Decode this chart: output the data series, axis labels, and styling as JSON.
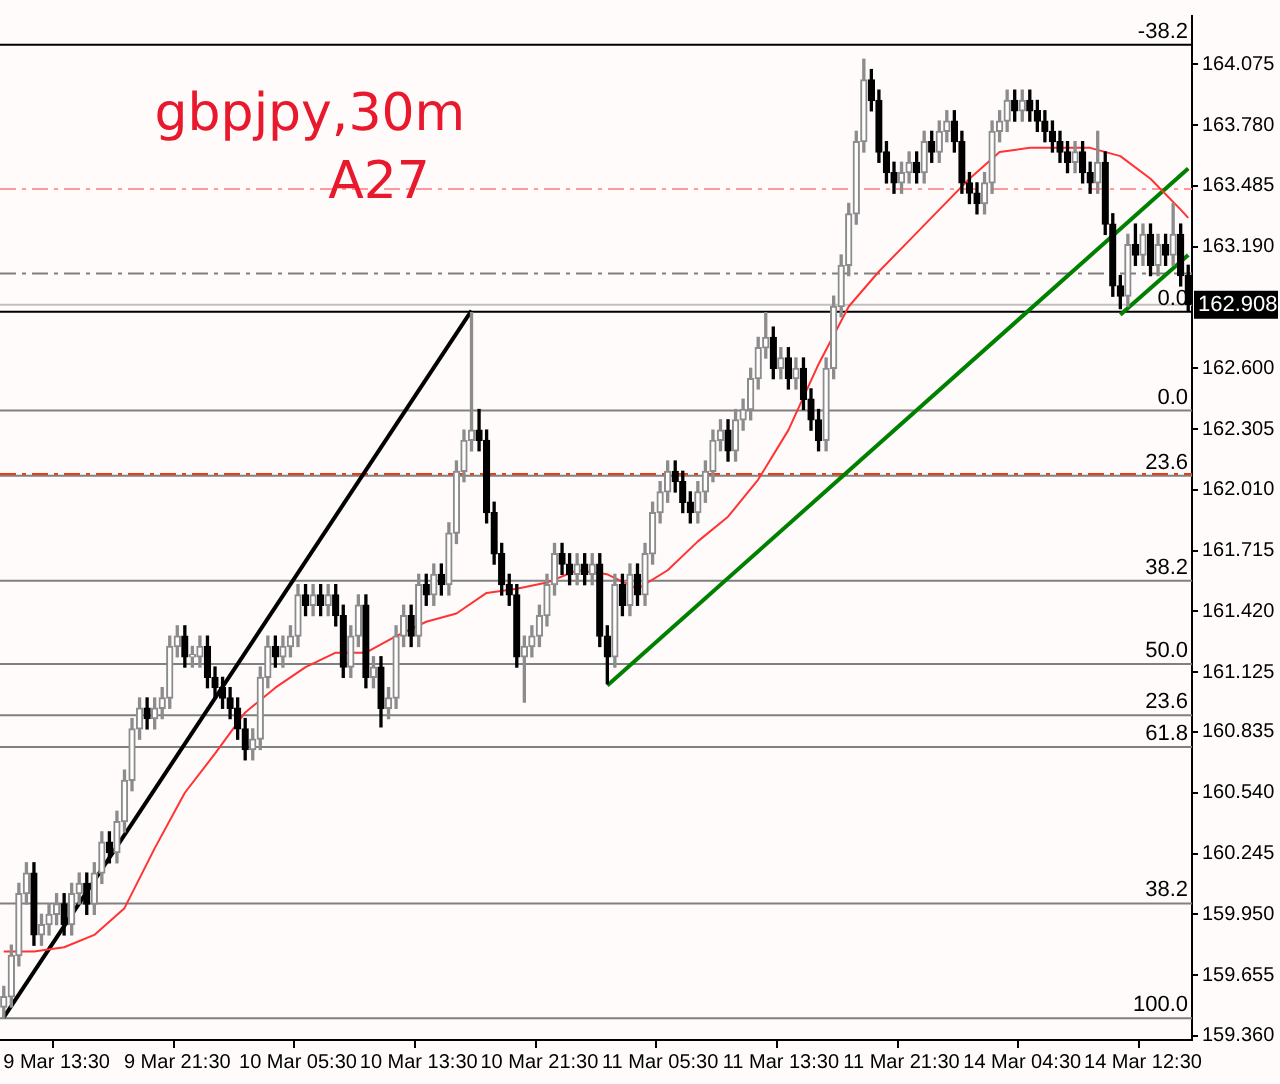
{
  "chart_data": {
    "type": "candlestick",
    "title": "gbpjpy,30m",
    "subtitle": "A27",
    "categories": [
      null,
      null,
      null,
      null,
      null,
      null,
      null,
      "9 Mar 13:30",
      null,
      null,
      null,
      null,
      null,
      null,
      null,
      null,
      null,
      null,
      null,
      null,
      null,
      null,
      null,
      "9 Mar 21:30",
      null,
      null,
      null,
      null,
      null,
      null,
      null,
      null,
      null,
      null,
      null,
      null,
      null,
      null,
      null,
      "10 Mar 05:30",
      null,
      null,
      null,
      null,
      null,
      null,
      null,
      null,
      null,
      null,
      null,
      null,
      null,
      null,
      null,
      "10 Mar 13:30",
      null,
      null,
      null,
      null,
      null,
      null,
      null,
      null,
      null,
      null,
      null,
      null,
      null,
      null,
      null,
      "10 Mar 21:30",
      null,
      null,
      null,
      null,
      null,
      null,
      null,
      null,
      null,
      null,
      null,
      null,
      null,
      null,
      null,
      "11 Mar 05:30",
      null,
      null,
      null,
      null,
      null,
      null,
      null,
      null,
      null,
      null,
      null,
      null,
      null,
      null,
      null,
      "11 Mar 13:30",
      null,
      null,
      null,
      null,
      null,
      null,
      null,
      null,
      null,
      null,
      null,
      null,
      null,
      null,
      null,
      "11 Mar 21:30",
      null,
      null,
      null,
      null,
      null,
      null,
      null,
      null,
      null,
      null,
      null,
      null,
      null,
      null,
      null,
      "14 Mar 04:30",
      null,
      null,
      null,
      null,
      null,
      null,
      null,
      null,
      null,
      null,
      null,
      null,
      null,
      null,
      null,
      "14 Mar 12:30",
      null,
      null,
      null,
      null,
      null,
      null
    ],
    "ohlc": [
      [
        159.5,
        159.6,
        159.45,
        159.55
      ],
      [
        159.55,
        159.8,
        159.5,
        159.75
      ],
      [
        159.75,
        160.1,
        159.7,
        160.05
      ],
      [
        160.05,
        160.2,
        160.0,
        160.15
      ],
      [
        160.15,
        160.2,
        159.8,
        159.85
      ],
      [
        159.85,
        159.95,
        159.8,
        159.9
      ],
      [
        159.9,
        160.0,
        159.85,
        159.95
      ],
      [
        159.95,
        160.05,
        159.9,
        160.0
      ],
      [
        160.0,
        160.05,
        159.85,
        159.9
      ],
      [
        159.9,
        160.1,
        159.85,
        160.05
      ],
      [
        160.05,
        160.15,
        160.0,
        160.1
      ],
      [
        160.1,
        160.15,
        159.95,
        160.0
      ],
      [
        160.0,
        160.2,
        159.95,
        160.15
      ],
      [
        160.15,
        160.35,
        160.1,
        160.3
      ],
      [
        160.3,
        160.35,
        160.2,
        160.25
      ],
      [
        160.25,
        160.45,
        160.2,
        160.4
      ],
      [
        160.4,
        160.65,
        160.35,
        160.6
      ],
      [
        160.6,
        160.9,
        160.55,
        160.85
      ],
      [
        160.85,
        161.0,
        160.8,
        160.95
      ],
      [
        160.95,
        161.0,
        160.85,
        160.9
      ],
      [
        160.9,
        161.0,
        160.85,
        160.95
      ],
      [
        160.95,
        161.05,
        160.9,
        161.0
      ],
      [
        161.0,
        161.3,
        160.95,
        161.25
      ],
      [
        161.25,
        161.35,
        161.2,
        161.3
      ],
      [
        161.3,
        161.35,
        161.15,
        161.2
      ],
      [
        161.2,
        161.25,
        161.15,
        161.2
      ],
      [
        161.2,
        161.3,
        161.15,
        161.25
      ],
      [
        161.25,
        161.3,
        161.05,
        161.1
      ],
      [
        161.1,
        161.15,
        161.0,
        161.05
      ],
      [
        161.05,
        161.1,
        160.95,
        161.0
      ],
      [
        161.0,
        161.05,
        160.9,
        160.95
      ],
      [
        160.95,
        161.0,
        160.8,
        160.85
      ],
      [
        160.85,
        160.9,
        160.7,
        160.75
      ],
      [
        160.75,
        160.85,
        160.7,
        160.8
      ],
      [
        160.8,
        161.15,
        160.75,
        161.1
      ],
      [
        161.1,
        161.3,
        161.05,
        161.25
      ],
      [
        161.25,
        161.3,
        161.15,
        161.2
      ],
      [
        161.2,
        161.3,
        161.15,
        161.25
      ],
      [
        161.25,
        161.35,
        161.2,
        161.3
      ],
      [
        161.3,
        161.55,
        161.25,
        161.5
      ],
      [
        161.5,
        161.55,
        161.4,
        161.45
      ],
      [
        161.45,
        161.55,
        161.4,
        161.5
      ],
      [
        161.5,
        161.55,
        161.4,
        161.45
      ],
      [
        161.45,
        161.55,
        161.4,
        161.5
      ],
      [
        161.5,
        161.55,
        161.35,
        161.4
      ],
      [
        161.4,
        161.45,
        161.1,
        161.15
      ],
      [
        161.15,
        161.35,
        161.1,
        161.3
      ],
      [
        161.3,
        161.5,
        161.25,
        161.45
      ],
      [
        161.45,
        161.5,
        161.05,
        161.1
      ],
      [
        161.1,
        161.2,
        161.05,
        161.15
      ],
      [
        161.15,
        161.2,
        160.86,
        160.95
      ],
      [
        160.95,
        161.05,
        160.9,
        161.0
      ],
      [
        161.0,
        161.35,
        160.95,
        161.3
      ],
      [
        161.3,
        161.45,
        161.25,
        161.4
      ],
      [
        161.4,
        161.45,
        161.25,
        161.3
      ],
      [
        161.3,
        161.6,
        161.25,
        161.55
      ],
      [
        161.55,
        161.6,
        161.45,
        161.5
      ],
      [
        161.5,
        161.65,
        161.45,
        161.6
      ],
      [
        161.6,
        161.65,
        161.5,
        161.55
      ],
      [
        161.55,
        161.85,
        161.5,
        161.8
      ],
      [
        161.8,
        162.15,
        161.75,
        162.1
      ],
      [
        162.1,
        162.3,
        162.05,
        162.25
      ],
      [
        162.25,
        162.87,
        162.2,
        162.3
      ],
      [
        162.3,
        162.4,
        162.2,
        162.25
      ],
      [
        162.25,
        162.3,
        161.85,
        161.9
      ],
      [
        161.9,
        161.95,
        161.65,
        161.7
      ],
      [
        161.7,
        161.75,
        161.5,
        161.55
      ],
      [
        161.55,
        161.6,
        161.45,
        161.5
      ],
      [
        161.5,
        161.55,
        161.15,
        161.2
      ],
      [
        161.2,
        161.3,
        160.98,
        161.25
      ],
      [
        161.25,
        161.35,
        161.2,
        161.3
      ],
      [
        161.3,
        161.45,
        161.25,
        161.4
      ],
      [
        161.4,
        161.6,
        161.35,
        161.55
      ],
      [
        161.55,
        161.75,
        161.5,
        161.7
      ],
      [
        161.7,
        161.75,
        161.6,
        161.65
      ],
      [
        161.65,
        161.7,
        161.55,
        161.6
      ],
      [
        161.6,
        161.7,
        161.55,
        161.65
      ],
      [
        161.65,
        161.7,
        161.55,
        161.6
      ],
      [
        161.6,
        161.7,
        161.55,
        161.65
      ],
      [
        161.65,
        161.7,
        161.25,
        161.3
      ],
      [
        161.3,
        161.35,
        161.07,
        161.2
      ],
      [
        161.2,
        161.6,
        161.15,
        161.55
      ],
      [
        161.55,
        161.6,
        161.4,
        161.45
      ],
      [
        161.45,
        161.65,
        161.4,
        161.6
      ],
      [
        161.6,
        161.65,
        161.45,
        161.5
      ],
      [
        161.5,
        161.75,
        161.45,
        161.7
      ],
      [
        161.7,
        161.95,
        161.65,
        161.9
      ],
      [
        161.9,
        162.05,
        161.85,
        162.0
      ],
      [
        162.0,
        162.15,
        161.95,
        162.1
      ],
      [
        162.1,
        162.15,
        162.0,
        162.05
      ],
      [
        162.05,
        162.1,
        161.9,
        161.95
      ],
      [
        161.95,
        162.0,
        161.85,
        161.9
      ],
      [
        161.9,
        162.05,
        161.85,
        162.0
      ],
      [
        162.0,
        162.15,
        161.95,
        162.1
      ],
      [
        162.1,
        162.3,
        162.05,
        162.25
      ],
      [
        162.25,
        162.35,
        162.2,
        162.3
      ],
      [
        162.3,
        162.35,
        162.15,
        162.2
      ],
      [
        162.2,
        162.4,
        162.15,
        162.35
      ],
      [
        162.35,
        162.45,
        162.3,
        162.4
      ],
      [
        162.4,
        162.6,
        162.35,
        162.55
      ],
      [
        162.55,
        162.75,
        162.5,
        162.7
      ],
      [
        162.7,
        162.87,
        162.65,
        162.75
      ],
      [
        162.75,
        162.8,
        162.55,
        162.6
      ],
      [
        162.6,
        162.7,
        162.55,
        162.65
      ],
      [
        162.65,
        162.7,
        162.5,
        162.55
      ],
      [
        162.55,
        162.65,
        162.5,
        162.6
      ],
      [
        162.6,
        162.65,
        162.4,
        162.45
      ],
      [
        162.45,
        162.5,
        162.3,
        162.35
      ],
      [
        162.35,
        162.4,
        162.2,
        162.25
      ],
      [
        162.25,
        162.65,
        162.2,
        162.6
      ],
      [
        162.6,
        162.95,
        162.55,
        162.9
      ],
      [
        162.9,
        163.15,
        162.85,
        163.1
      ],
      [
        163.1,
        163.4,
        163.05,
        163.35
      ],
      [
        163.35,
        163.75,
        163.3,
        163.7
      ],
      [
        163.7,
        164.1,
        163.65,
        164.0
      ],
      [
        164.0,
        164.05,
        163.85,
        163.9
      ],
      [
        163.9,
        163.95,
        163.6,
        163.65
      ],
      [
        163.65,
        163.7,
        163.5,
        163.55
      ],
      [
        163.55,
        163.6,
        163.45,
        163.5
      ],
      [
        163.5,
        163.6,
        163.45,
        163.55
      ],
      [
        163.55,
        163.65,
        163.5,
        163.6
      ],
      [
        163.6,
        163.65,
        163.5,
        163.55
      ],
      [
        163.55,
        163.75,
        163.5,
        163.7
      ],
      [
        163.7,
        163.75,
        163.6,
        163.65
      ],
      [
        163.65,
        163.8,
        163.6,
        163.75
      ],
      [
        163.75,
        163.85,
        163.7,
        163.8
      ],
      [
        163.8,
        163.85,
        163.65,
        163.7
      ],
      [
        163.7,
        163.75,
        163.45,
        163.5
      ],
      [
        163.5,
        163.55,
        163.4,
        163.45
      ],
      [
        163.45,
        163.5,
        163.35,
        163.4
      ],
      [
        163.4,
        163.55,
        163.35,
        163.5
      ],
      [
        163.5,
        163.8,
        163.45,
        163.75
      ],
      [
        163.75,
        163.85,
        163.7,
        163.8
      ],
      [
        163.8,
        163.95,
        163.75,
        163.9
      ],
      [
        163.9,
        163.95,
        163.8,
        163.85
      ],
      [
        163.85,
        163.95,
        163.8,
        163.9
      ],
      [
        163.9,
        163.95,
        163.8,
        163.85
      ],
      [
        163.85,
        163.9,
        163.75,
        163.8
      ],
      [
        163.8,
        163.85,
        163.7,
        163.75
      ],
      [
        163.75,
        163.8,
        163.65,
        163.7
      ],
      [
        163.7,
        163.75,
        163.6,
        163.65
      ],
      [
        163.65,
        163.7,
        163.55,
        163.6
      ],
      [
        163.6,
        163.7,
        163.55,
        163.65
      ],
      [
        163.65,
        163.7,
        163.5,
        163.55
      ],
      [
        163.55,
        163.6,
        163.45,
        163.5
      ],
      [
        163.5,
        163.75,
        163.45,
        163.6
      ],
      [
        163.6,
        163.65,
        163.25,
        163.3
      ],
      [
        163.3,
        163.35,
        162.95,
        163.0
      ],
      [
        163.0,
        163.05,
        162.89,
        162.95
      ],
      [
        162.95,
        163.25,
        162.9,
        163.2
      ],
      [
        163.2,
        163.3,
        163.1,
        163.15
      ],
      [
        163.15,
        163.3,
        163.1,
        163.25
      ],
      [
        163.25,
        163.3,
        163.05,
        163.1
      ],
      [
        163.1,
        163.25,
        163.05,
        163.2
      ],
      [
        163.2,
        163.25,
        163.1,
        163.15
      ],
      [
        163.15,
        163.4,
        163.1,
        163.25
      ],
      [
        163.25,
        163.3,
        163.0,
        163.05
      ],
      [
        163.05,
        163.1,
        162.88,
        162.91
      ]
    ],
    "series": [
      {
        "type": "line",
        "color": "#ff3333",
        "values": [
          159.77,
          null,
          null,
          null,
          159.77,
          null,
          null,
          null,
          159.79,
          null,
          null,
          null,
          159.85,
          null,
          null,
          null,
          159.98,
          null,
          null,
          null,
          160.27,
          null,
          null,
          null,
          160.54,
          null,
          null,
          null,
          160.73,
          null,
          null,
          null,
          160.93,
          null,
          null,
          null,
          161.05,
          null,
          null,
          null,
          161.15,
          null,
          null,
          null,
          161.22,
          null,
          null,
          null,
          161.22,
          null,
          null,
          null,
          161.3,
          null,
          null,
          null,
          161.37,
          null,
          null,
          null,
          161.41,
          null,
          null,
          null,
          161.51,
          null,
          null,
          null,
          161.53,
          null,
          null,
          null,
          161.56,
          null,
          null,
          null,
          161.62,
          null,
          null,
          null,
          161.6,
          null,
          null,
          null,
          161.53,
          null,
          null,
          null,
          161.62,
          null,
          null,
          null,
          161.76,
          null,
          null,
          null,
          161.88,
          null,
          null,
          null,
          162.06,
          null,
          null,
          null,
          162.3,
          null,
          null,
          null,
          162.62,
          null,
          null,
          null,
          162.9,
          null,
          null,
          null,
          163.07,
          null,
          null,
          null,
          163.22,
          null,
          null,
          null,
          163.37,
          null,
          null,
          null,
          163.52,
          null,
          null,
          null,
          163.65,
          null,
          null,
          null,
          163.67,
          null,
          null,
          null,
          163.67,
          null,
          null,
          null,
          163.67,
          null,
          null,
          null,
          163.63,
          null,
          null,
          null,
          163.52,
          null,
          null,
          null,
          163.37,
          163.33
        ]
      },
      {
        "type": "line",
        "color": "#000000",
        "values": [
          159.45,
          null,
          null,
          null,
          null,
          null,
          null,
          null,
          null,
          null,
          null,
          null,
          null,
          null,
          null,
          null,
          null,
          null,
          null,
          null,
          null,
          null,
          null,
          null,
          null,
          null,
          null,
          null,
          null,
          null,
          null,
          null,
          null,
          null,
          null,
          null,
          null,
          null,
          null,
          null,
          null,
          null,
          null,
          null,
          null,
          null,
          null,
          null,
          null,
          null,
          null,
          null,
          null,
          null,
          null,
          null,
          null,
          null,
          null,
          null,
          null,
          null,
          162.88,
          null,
          null,
          null,
          null,
          null,
          null,
          null,
          null,
          null,
          null,
          null,
          null,
          null,
          null,
          null,
          null,
          null,
          null,
          null,
          null,
          null,
          null,
          null,
          null,
          null,
          null,
          null,
          null,
          null,
          null,
          null,
          null,
          null,
          null,
          null,
          null,
          null,
          null,
          null,
          null,
          null,
          null,
          null,
          null,
          null,
          null,
          null,
          null,
          null,
          null,
          null,
          null,
          null,
          null,
          null,
          null,
          null,
          null,
          null,
          null,
          null,
          null,
          null,
          null,
          null,
          null,
          null,
          null,
          null,
          null,
          null,
          null,
          null,
          null,
          null,
          null,
          null,
          null,
          null,
          null,
          null,
          null,
          null,
          null,
          null,
          null,
          null,
          null,
          null,
          null,
          null,
          null,
          null,
          null,
          null
        ]
      },
      {
        "type": "line",
        "color": "#008000",
        "values": [
          null,
          null,
          null,
          null,
          null,
          null,
          null,
          null,
          null,
          null,
          null,
          null,
          null,
          null,
          null,
          null,
          null,
          null,
          null,
          null,
          null,
          null,
          null,
          null,
          null,
          null,
          null,
          null,
          null,
          null,
          null,
          null,
          null,
          null,
          null,
          null,
          null,
          null,
          null,
          null,
          null,
          null,
          null,
          null,
          null,
          null,
          null,
          null,
          null,
          null,
          null,
          null,
          null,
          null,
          null,
          null,
          null,
          null,
          null,
          null,
          null,
          null,
          null,
          null,
          null,
          null,
          null,
          null,
          null,
          null,
          null,
          null,
          null,
          null,
          null,
          null,
          null,
          null,
          null,
          null,
          161.06,
          null,
          null,
          null,
          null,
          null,
          null,
          null,
          null,
          null,
          null,
          null,
          null,
          null,
          null,
          null,
          null,
          null,
          null,
          null,
          null,
          null,
          null,
          null,
          null,
          null,
          null,
          null,
          null,
          null,
          null,
          null,
          null,
          null,
          null,
          null,
          null,
          null,
          null,
          null,
          null,
          null,
          null,
          null,
          null,
          null,
          null,
          null,
          null,
          null,
          null,
          null,
          null,
          null,
          null,
          null,
          null,
          null,
          null,
          null,
          null,
          null,
          null,
          null,
          null,
          null,
          null,
          null,
          null,
          null,
          null,
          null,
          null,
          null,
          null,
          null,
          null,
          163.57
        ]
      },
      {
        "type": "line",
        "color": "#008000",
        "values": [
          null,
          null,
          null,
          null,
          null,
          null,
          null,
          null,
          null,
          null,
          null,
          null,
          null,
          null,
          null,
          null,
          null,
          null,
          null,
          null,
          null,
          null,
          null,
          null,
          null,
          null,
          null,
          null,
          null,
          null,
          null,
          null,
          null,
          null,
          null,
          null,
          null,
          null,
          null,
          null,
          null,
          null,
          null,
          null,
          null,
          null,
          null,
          null,
          null,
          null,
          null,
          null,
          null,
          null,
          null,
          null,
          null,
          null,
          null,
          null,
          null,
          null,
          null,
          null,
          null,
          null,
          null,
          null,
          null,
          null,
          null,
          null,
          null,
          null,
          null,
          null,
          null,
          null,
          null,
          null,
          null,
          null,
          null,
          null,
          null,
          null,
          null,
          null,
          null,
          null,
          null,
          null,
          null,
          null,
          null,
          null,
          null,
          null,
          null,
          null,
          null,
          null,
          null,
          null,
          null,
          null,
          null,
          null,
          null,
          null,
          null,
          null,
          null,
          null,
          null,
          null,
          null,
          null,
          null,
          null,
          null,
          null,
          null,
          null,
          null,
          null,
          null,
          null,
          null,
          null,
          null,
          null,
          null,
          null,
          null,
          null,
          null,
          null,
          null,
          null,
          null,
          null,
          null,
          null,
          null,
          null,
          null,
          null,
          162.86,
          null,
          null,
          null,
          null,
          null,
          null,
          null,
          null,
          163.15
        ]
      }
    ],
    "ylim": [
      159.34,
      164.31
    ],
    "yticks": [
      {
        "value": 159.36,
        "label": "159.360"
      },
      159.655,
      {
        "value": 159.95,
        "label": "159.950"
      },
      160.245,
      {
        "value": 160.54,
        "label": "160.540"
      },
      160.835,
      161.125,
      {
        "value": 161.42,
        "label": "161.420"
      },
      161.715,
      {
        "value": 162.01,
        "label": "162.010"
      },
      162.305,
      {
        "value": 162.6,
        "label": "162.600"
      },
      {
        "value": 163.19,
        "label": "163.190"
      },
      163.485,
      {
        "value": 163.78,
        "label": "163.780"
      },
      164.075
    ],
    "ref_lines": [
      {
        "axis": "y",
        "value": 164.17,
        "color": "#000000"
      },
      {
        "axis": "y",
        "value": 163.47,
        "color": "#ff9999",
        "line_style": "dashed"
      },
      {
        "axis": "y",
        "value": 163.06,
        "color": "#808080",
        "line_style": "dashed"
      },
      {
        "axis": "y",
        "value": 162.908,
        "label": "162.908",
        "color": "#c0c0c0"
      },
      {
        "axis": "y",
        "value": 162.875,
        "color": "#000000"
      },
      {
        "axis": "y",
        "value": 162.395,
        "color": "#808080"
      },
      {
        "axis": "y",
        "value": 162.087,
        "color": "#ff3300",
        "line_style": "dashed"
      },
      {
        "axis": "y",
        "value": 162.078,
        "color": "#808080"
      },
      {
        "axis": "y",
        "value": 161.569,
        "color": "#808080"
      },
      {
        "axis": "y",
        "value": 161.165,
        "color": "#808080"
      },
      {
        "axis": "y",
        "value": 160.916,
        "color": "#808080"
      },
      {
        "axis": "y",
        "value": 160.762,
        "color": "#808080"
      },
      {
        "axis": "y",
        "value": 160.003,
        "color": "#808080"
      },
      {
        "axis": "y",
        "value": 159.446,
        "color": "#808080"
      }
    ],
    "annotations": [
      {
        "text": "-38.2",
        "y": 164.17
      },
      {
        "text": "0.0",
        "y": 162.875
      },
      {
        "text": "0.0",
        "y": 162.395
      },
      {
        "text": "23.6",
        "y": 162.078
      },
      {
        "text": "38.2",
        "y": 161.569
      },
      {
        "text": "50.0",
        "y": 161.165
      },
      {
        "text": "23.6",
        "y": 160.916
      },
      {
        "text": "61.8",
        "y": 160.762
      },
      {
        "text": "38.2",
        "y": 160.003
      },
      {
        "text": "100.0",
        "y": 159.446
      }
    ]
  }
}
